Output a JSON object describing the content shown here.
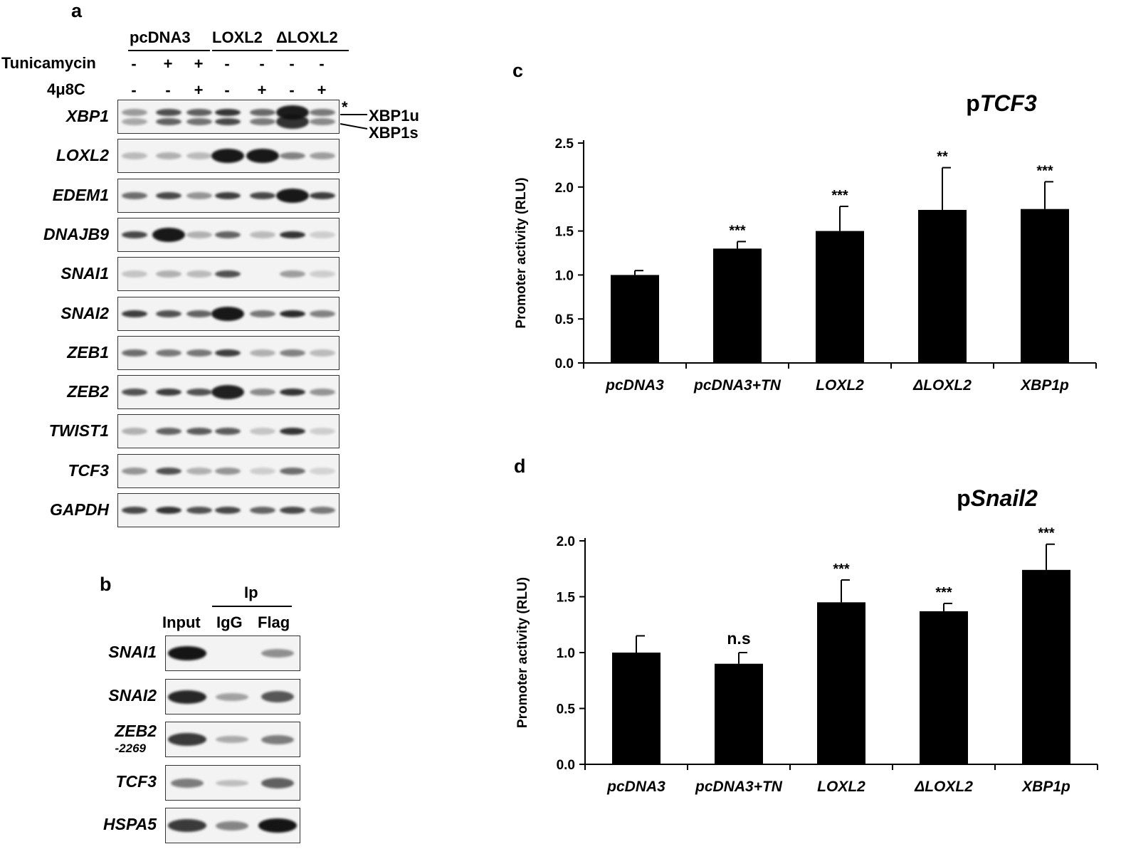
{
  "panel_a": {
    "letter": "a",
    "groups": [
      "pcDNA3",
      "LOXL2",
      "ΔLOXL2"
    ],
    "treatments": [
      {
        "label": "Tunicamycin",
        "signs": [
          "-",
          "+",
          "+",
          "-",
          "-",
          "-",
          "-"
        ]
      },
      {
        "label": "4μ8C",
        "signs": [
          "-",
          "-",
          "+",
          "-",
          "+",
          "-",
          "+"
        ]
      }
    ],
    "genes": [
      {
        "name": "XBP1",
        "bands": [
          0.25,
          0.7,
          0.6,
          0.85,
          0.55,
          1.0,
          0.45
        ]
      },
      {
        "name": "LOXL2",
        "bands": [
          0.15,
          0.2,
          0.15,
          1.0,
          1.0,
          0.45,
          0.3
        ]
      },
      {
        "name": "EDEM1",
        "bands": [
          0.55,
          0.75,
          0.35,
          0.8,
          0.75,
          1.0,
          0.8
        ]
      },
      {
        "name": "DNAJB9",
        "bands": [
          0.75,
          1.0,
          0.2,
          0.6,
          0.15,
          0.85,
          0.05
        ]
      },
      {
        "name": "SNAI1",
        "bands": [
          0.1,
          0.2,
          0.15,
          0.7,
          0.0,
          0.3,
          0.05
        ]
      },
      {
        "name": "SNAI2",
        "bands": [
          0.8,
          0.7,
          0.6,
          1.0,
          0.5,
          0.9,
          0.45
        ]
      },
      {
        "name": "ZEB1",
        "bands": [
          0.55,
          0.5,
          0.5,
          0.8,
          0.2,
          0.45,
          0.15
        ]
      },
      {
        "name": "ZEB2",
        "bands": [
          0.7,
          0.8,
          0.7,
          0.95,
          0.4,
          0.85,
          0.35
        ]
      },
      {
        "name": "TWIST1",
        "bands": [
          0.2,
          0.6,
          0.65,
          0.65,
          0.1,
          0.85,
          0.05
        ]
      },
      {
        "name": "TCF3",
        "bands": [
          0.35,
          0.7,
          0.2,
          0.35,
          0.05,
          0.55,
          0.02
        ]
      },
      {
        "name": "GAPDH",
        "bands": [
          0.75,
          0.85,
          0.7,
          0.75,
          0.6,
          0.75,
          0.5
        ]
      }
    ],
    "xbp1_annotations": {
      "asterisk": "*",
      "unspliced": "XBP1u",
      "spliced": "XBP1s"
    }
  },
  "panel_b": {
    "letter": "b",
    "ip_label": "Ip",
    "columns": [
      "Input",
      "IgG",
      "Flag"
    ],
    "genes": [
      {
        "name": "SNAI1",
        "sub": "",
        "bands": [
          1.0,
          0.0,
          0.35
        ]
      },
      {
        "name": "SNAI2",
        "sub": "",
        "bands": [
          0.9,
          0.25,
          0.65
        ]
      },
      {
        "name": "ZEB2",
        "sub": "-2269",
        "bands": [
          0.8,
          0.2,
          0.45
        ]
      },
      {
        "name": "TCF3",
        "sub": "",
        "bands": [
          0.45,
          0.1,
          0.6
        ]
      },
      {
        "name": "HSPA5",
        "sub": "",
        "bands": [
          0.8,
          0.4,
          1.0
        ]
      }
    ]
  },
  "chart_data": [
    {
      "type": "bar",
      "panel": "c",
      "title_prefix": "p",
      "title_italic": "TCF3",
      "ylabel": "Promoter activity (RLU)",
      "categories": [
        "pcDNA3",
        "pcDNA3+TN",
        "LOXL2",
        "ΔLOXL2",
        "XBP1p"
      ],
      "values": [
        1.0,
        1.3,
        1.5,
        1.74,
        1.75
      ],
      "errors": [
        0.05,
        0.08,
        0.28,
        0.48,
        0.31
      ],
      "significance": [
        "",
        "***",
        "***",
        "**",
        "***"
      ],
      "ylim": [
        0,
        2.5
      ],
      "yticks": [
        "0.0",
        "0.5",
        "1.0",
        "1.5",
        "2.0",
        "2.5"
      ],
      "grid": false,
      "bar_color": "#000000"
    },
    {
      "type": "bar",
      "panel": "d",
      "title_prefix": "p",
      "title_italic": "Snail2",
      "ylabel": "Promoter activity (RLU)",
      "categories": [
        "pcDNA3",
        "pcDNA3+TN",
        "LOXL2",
        "ΔLOXL2",
        "XBP1p"
      ],
      "values": [
        1.0,
        0.9,
        1.45,
        1.37,
        1.74
      ],
      "errors": [
        0.15,
        0.1,
        0.2,
        0.07,
        0.23
      ],
      "significance": [
        "",
        "n.s",
        "***",
        "***",
        "***"
      ],
      "ylim": [
        0,
        2.0
      ],
      "yticks": [
        "0.0",
        "0.5",
        "1.0",
        "1.5",
        "2.0"
      ],
      "grid": false,
      "bar_color": "#000000"
    }
  ]
}
